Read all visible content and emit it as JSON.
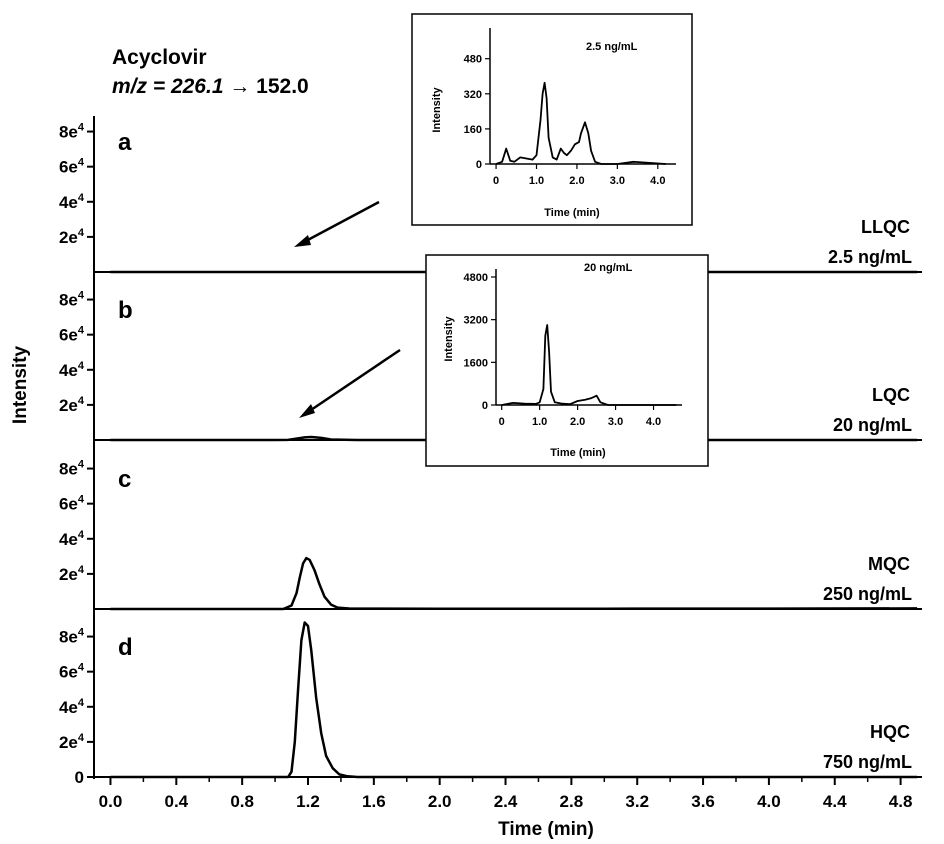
{
  "compound": "Acyclovir",
  "transition_prefix": "m/z",
  "transition_precursor": " = 226.1",
  "transition_product": " → 152.0",
  "ylabel": "Intensity",
  "xlabel": "Time (min)",
  "chart_data": {
    "type": "line",
    "xlim": [
      -0.1,
      4.93
    ],
    "x_ticks": [
      "0.0",
      "0.4",
      "0.8",
      "1.2",
      "1.6",
      "2.0",
      "2.4",
      "2.8",
      "3.2",
      "3.6",
      "4.0",
      "4.4",
      "4.8"
    ],
    "panels": [
      {
        "letter": "a",
        "label_line1": "LLQC",
        "label_line2": "2.5 ng/mL",
        "ylim": [
          0,
          90000
        ],
        "y_ticks": [
          {
            "base": "2e",
            "exp": "4",
            "value": 20000
          },
          {
            "base": "4e",
            "exp": "4",
            "value": 40000
          },
          {
            "base": "6e",
            "exp": "4",
            "value": 60000
          },
          {
            "base": "8e",
            "exp": "4",
            "value": 80000
          }
        ],
        "series": [
          {
            "x": [
              0.0,
              1.2,
              4.9
            ],
            "y": [
              0,
              0,
              0
            ]
          }
        ]
      },
      {
        "letter": "b",
        "label_line1": "LQC",
        "label_line2": "20 ng/mL",
        "ylim": [
          0,
          90000
        ],
        "y_ticks": [
          {
            "base": "2e",
            "exp": "4",
            "value": 20000
          },
          {
            "base": "4e",
            "exp": "4",
            "value": 40000
          },
          {
            "base": "6e",
            "exp": "4",
            "value": 60000
          },
          {
            "base": "8e",
            "exp": "4",
            "value": 80000
          }
        ],
        "series": [
          {
            "x": [
              0.0,
              1.0,
              1.08,
              1.12,
              1.18,
              1.22,
              1.28,
              1.34,
              1.5,
              4.9
            ],
            "y": [
              0,
              0,
              80,
              600,
              1500,
              1700,
              1200,
              300,
              0,
              0
            ]
          }
        ]
      },
      {
        "letter": "c",
        "label_line1": "MQC",
        "label_line2": "250 ng/mL",
        "ylim": [
          0,
          90000
        ],
        "y_ticks": [
          {
            "base": "2e",
            "exp": "4",
            "value": 20000
          },
          {
            "base": "4e",
            "exp": "4",
            "value": 40000
          },
          {
            "base": "6e",
            "exp": "4",
            "value": 60000
          },
          {
            "base": "8e",
            "exp": "4",
            "value": 80000
          }
        ],
        "series": [
          {
            "x": [
              0.0,
              1.05,
              1.1,
              1.13,
              1.15,
              1.17,
              1.19,
              1.21,
              1.24,
              1.27,
              1.3,
              1.34,
              1.38,
              1.45,
              2.0,
              3.0,
              4.0,
              4.9
            ],
            "y": [
              0,
              0,
              2000,
              9000,
              18000,
              26000,
              29000,
              28000,
              22000,
              14000,
              7000,
              2500,
              800,
              300,
              150,
              150,
              200,
              350
            ]
          }
        ]
      },
      {
        "letter": "d",
        "label_line1": "HQC",
        "label_line2": "750 ng/mL",
        "ylim": [
          0,
          90000
        ],
        "y_ticks": [
          {
            "base": "0",
            "exp": "",
            "value": 0
          },
          {
            "base": "2e",
            "exp": "4",
            "value": 20000
          },
          {
            "base": "4e",
            "exp": "4",
            "value": 40000
          },
          {
            "base": "6e",
            "exp": "4",
            "value": 60000
          },
          {
            "base": "8e",
            "exp": "4",
            "value": 80000
          }
        ],
        "series": [
          {
            "x": [
              0.0,
              1.08,
              1.1,
              1.12,
              1.14,
              1.16,
              1.18,
              1.2,
              1.22,
              1.25,
              1.28,
              1.31,
              1.35,
              1.39,
              1.44,
              1.5,
              4.9
            ],
            "y": [
              0,
              0,
              3000,
              20000,
              50000,
              78000,
              88000,
              86000,
              72000,
              45000,
              25000,
              12000,
              5000,
              1500,
              400,
              0,
              0
            ]
          }
        ]
      }
    ],
    "insets": [
      {
        "concentration": "2.5 ng/mL",
        "ylabel": "Intensity",
        "xlabel": "Time (min)",
        "xlim": [
          -0.15,
          4.45
        ],
        "ylim": [
          0,
          620
        ],
        "x_ticks": [
          "0",
          "1.0",
          "2.0",
          "3.0",
          "4.0"
        ],
        "y_ticks": [
          "0",
          "160",
          "320",
          "480"
        ],
        "series": [
          {
            "x": [
              0.0,
              0.15,
              0.25,
              0.35,
              0.45,
              0.6,
              0.75,
              0.9,
              1.0,
              1.1,
              1.15,
              1.2,
              1.25,
              1.3,
              1.4,
              1.5,
              1.6,
              1.68,
              1.75,
              1.85,
              1.95,
              2.05,
              2.1,
              2.2,
              2.28,
              2.35,
              2.45,
              2.6,
              3.0,
              3.4,
              3.8,
              4.2
            ],
            "y": [
              0,
              10,
              70,
              15,
              10,
              30,
              25,
              20,
              40,
              200,
              320,
              370,
              300,
              120,
              30,
              20,
              70,
              50,
              40,
              60,
              90,
              100,
              140,
              190,
              140,
              60,
              10,
              0,
              0,
              10,
              5,
              0
            ]
          }
        ]
      },
      {
        "concentration": "20 ng/mL",
        "ylabel": "Intensity",
        "xlabel": "Time (min)",
        "xlim": [
          -0.15,
          4.75
        ],
        "ylim": [
          0,
          5100
        ],
        "x_ticks": [
          "0",
          "1.0",
          "2.0",
          "3.0",
          "4.0"
        ],
        "y_ticks": [
          "0",
          "1600",
          "3200",
          "4800"
        ],
        "series": [
          {
            "x": [
              0.0,
              0.3,
              0.6,
              0.9,
              1.0,
              1.1,
              1.15,
              1.2,
              1.25,
              1.3,
              1.4,
              1.6,
              1.8,
              2.0,
              2.2,
              2.35,
              2.5,
              2.6,
              2.8,
              3.2,
              4.6
            ],
            "y": [
              0,
              80,
              50,
              40,
              100,
              600,
              2600,
              3000,
              2000,
              500,
              100,
              50,
              30,
              150,
              200,
              250,
              350,
              100,
              0,
              0,
              0
            ]
          }
        ]
      }
    ]
  }
}
